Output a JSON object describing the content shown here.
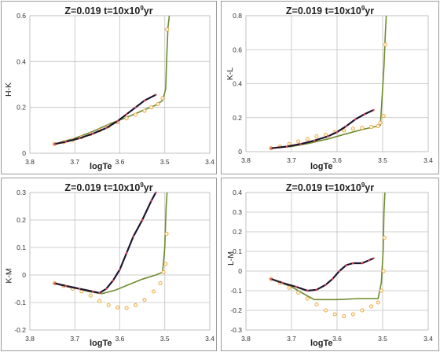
{
  "colors": {
    "frame": "#9a9a9a",
    "grid": "#bfbfbf",
    "isochrone": "#6e8c2d",
    "dark_track": "#1f1530",
    "dark_points": "#d7455a",
    "open_points": "#e8a33a"
  },
  "chart_data": [
    {
      "type": "line",
      "title": {
        "main": "Z=0.019  t=10x10",
        "exp": "9",
        "unit": "yr"
      },
      "xlabel": "logTe",
      "ylabel": "H-K",
      "xlim": [
        3.8,
        3.4
      ],
      "ylim": [
        0,
        0.6
      ],
      "xticks": [
        "3.8",
        "3.7",
        "3.6",
        "3.5",
        "3.4"
      ],
      "yticks": [
        "0",
        "0.2",
        "0.4",
        "0.6"
      ],
      "grid": true,
      "isochrone": [
        [
          3.745,
          0.04
        ],
        [
          3.7,
          0.065
        ],
        [
          3.66,
          0.095
        ],
        [
          3.62,
          0.13
        ],
        [
          3.58,
          0.16
        ],
        [
          3.545,
          0.19
        ],
        [
          3.52,
          0.21
        ],
        [
          3.505,
          0.23
        ],
        [
          3.498,
          0.28
        ],
        [
          3.496,
          0.4
        ],
        [
          3.493,
          0.55
        ],
        [
          3.49,
          0.6
        ]
      ],
      "dark_track": [
        [
          3.745,
          0.04
        ],
        [
          3.72,
          0.05
        ],
        [
          3.69,
          0.065
        ],
        [
          3.66,
          0.085
        ],
        [
          3.63,
          0.11
        ],
        [
          3.605,
          0.14
        ],
        [
          3.585,
          0.17
        ],
        [
          3.565,
          0.2
        ],
        [
          3.545,
          0.23
        ],
        [
          3.52,
          0.255
        ]
      ],
      "open_points": [
        [
          3.745,
          0.04
        ],
        [
          3.725,
          0.048
        ],
        [
          3.705,
          0.058
        ],
        [
          3.685,
          0.07
        ],
        [
          3.665,
          0.084
        ],
        [
          3.645,
          0.1
        ],
        [
          3.625,
          0.118
        ],
        [
          3.605,
          0.135
        ],
        [
          3.585,
          0.152
        ],
        [
          3.565,
          0.168
        ],
        [
          3.545,
          0.185
        ],
        [
          3.53,
          0.2
        ],
        [
          3.515,
          0.215
        ],
        [
          3.505,
          0.24
        ],
        [
          3.495,
          0.54
        ]
      ]
    },
    {
      "type": "line",
      "title": {
        "main": "Z=0.019  t=10x10",
        "exp": "9",
        "unit": "yr"
      },
      "xlabel": "logTe",
      "ylabel": "K-L",
      "xlim": [
        3.8,
        3.4
      ],
      "ylim": [
        0,
        0.8
      ],
      "xticks": [
        "3.8",
        "3.7",
        "3.6",
        "3.5",
        "3.4"
      ],
      "yticks": [
        "0",
        "0.2",
        "0.4",
        "0.6",
        "0.8"
      ],
      "grid": true,
      "isochrone": [
        [
          3.745,
          0.02
        ],
        [
          3.7,
          0.03
        ],
        [
          3.66,
          0.05
        ],
        [
          3.62,
          0.075
        ],
        [
          3.58,
          0.105
        ],
        [
          3.545,
          0.13
        ],
        [
          3.52,
          0.145
        ],
        [
          3.505,
          0.155
        ],
        [
          3.497,
          0.5
        ],
        [
          3.494,
          0.7
        ],
        [
          3.492,
          0.8
        ]
      ],
      "dark_track": [
        [
          3.745,
          0.02
        ],
        [
          3.71,
          0.03
        ],
        [
          3.68,
          0.045
        ],
        [
          3.65,
          0.065
        ],
        [
          3.62,
          0.09
        ],
        [
          3.6,
          0.115
        ],
        [
          3.58,
          0.15
        ],
        [
          3.56,
          0.19
        ],
        [
          3.54,
          0.22
        ],
        [
          3.52,
          0.245
        ]
      ],
      "open_points": [
        [
          3.745,
          0.02
        ],
        [
          3.725,
          0.03
        ],
        [
          3.705,
          0.045
        ],
        [
          3.685,
          0.06
        ],
        [
          3.665,
          0.075
        ],
        [
          3.645,
          0.09
        ],
        [
          3.625,
          0.1
        ],
        [
          3.605,
          0.115
        ],
        [
          3.585,
          0.125
        ],
        [
          3.565,
          0.135
        ],
        [
          3.545,
          0.14
        ],
        [
          3.525,
          0.145
        ],
        [
          3.51,
          0.15
        ],
        [
          3.505,
          0.17
        ],
        [
          3.498,
          0.21
        ],
        [
          3.494,
          0.63
        ]
      ]
    },
    {
      "type": "line",
      "title": {
        "main": "Z=0.019  t=10x10",
        "exp": "9",
        "unit": "yr"
      },
      "xlabel": "logTe",
      "ylabel": "K-M",
      "xlim": [
        3.8,
        3.4
      ],
      "ylim": [
        -0.2,
        0.3
      ],
      "xticks": [
        "3.8",
        "3.7",
        "3.6",
        "3.5",
        "3.4"
      ],
      "yticks": [
        "-0.2",
        "-0.1",
        "0",
        "0.1",
        "0.2",
        "0.3"
      ],
      "grid": true,
      "isochrone": [
        [
          3.745,
          -0.03
        ],
        [
          3.7,
          -0.045
        ],
        [
          3.67,
          -0.06
        ],
        [
          3.64,
          -0.068
        ],
        [
          3.61,
          -0.055
        ],
        [
          3.58,
          -0.035
        ],
        [
          3.55,
          -0.015
        ],
        [
          3.52,
          0.0
        ],
        [
          3.505,
          0.01
        ],
        [
          3.5,
          0.1
        ],
        [
          3.497,
          0.25
        ],
        [
          3.495,
          0.3
        ]
      ],
      "dark_track": [
        [
          3.745,
          -0.03
        ],
        [
          3.72,
          -0.04
        ],
        [
          3.69,
          -0.05
        ],
        [
          3.66,
          -0.06
        ],
        [
          3.645,
          -0.065
        ],
        [
          3.63,
          -0.05
        ],
        [
          3.615,
          -0.02
        ],
        [
          3.6,
          0.02
        ],
        [
          3.585,
          0.08
        ],
        [
          3.57,
          0.14
        ],
        [
          3.55,
          0.2
        ],
        [
          3.53,
          0.27
        ],
        [
          3.52,
          0.3
        ]
      ],
      "open_points": [
        [
          3.745,
          -0.03
        ],
        [
          3.725,
          -0.04
        ],
        [
          3.705,
          -0.05
        ],
        [
          3.685,
          -0.06
        ],
        [
          3.665,
          -0.075
        ],
        [
          3.645,
          -0.095
        ],
        [
          3.625,
          -0.11
        ],
        [
          3.605,
          -0.118
        ],
        [
          3.585,
          -0.12
        ],
        [
          3.565,
          -0.11
        ],
        [
          3.545,
          -0.09
        ],
        [
          3.525,
          -0.06
        ],
        [
          3.51,
          -0.03
        ],
        [
          3.503,
          0.01
        ],
        [
          3.498,
          0.04
        ],
        [
          3.496,
          0.15
        ]
      ]
    },
    {
      "type": "line",
      "title": {
        "main": "Z=0.019  t=10x10",
        "exp": "9",
        "unit": "yr"
      },
      "xlabel": "logTe",
      "ylabel": "L-M",
      "xlim": [
        3.8,
        3.4
      ],
      "ylim": [
        -0.3,
        0.4
      ],
      "xticks": [
        "3.8",
        "3.7",
        "3.6",
        "3.5",
        "3.4"
      ],
      "yticks": [
        "-0.3",
        "-0.2",
        "-0.1",
        "0",
        "0.1",
        "0.2",
        "0.3",
        "0.4"
      ],
      "grid": true,
      "isochrone": [
        [
          3.745,
          -0.04
        ],
        [
          3.7,
          -0.08
        ],
        [
          3.67,
          -0.12
        ],
        [
          3.65,
          -0.145
        ],
        [
          3.6,
          -0.145
        ],
        [
          3.55,
          -0.14
        ],
        [
          3.51,
          -0.14
        ],
        [
          3.503,
          -0.06
        ],
        [
          3.499,
          0.1
        ],
        [
          3.497,
          0.3
        ],
        [
          3.495,
          0.4
        ]
      ],
      "dark_track": [
        [
          3.745,
          -0.04
        ],
        [
          3.72,
          -0.06
        ],
        [
          3.69,
          -0.08
        ],
        [
          3.665,
          -0.1
        ],
        [
          3.645,
          -0.095
        ],
        [
          3.625,
          -0.07
        ],
        [
          3.61,
          -0.04
        ],
        [
          3.595,
          0.0
        ],
        [
          3.58,
          0.03
        ],
        [
          3.565,
          0.04
        ],
        [
          3.545,
          0.04
        ],
        [
          3.53,
          0.055
        ],
        [
          3.52,
          0.065
        ]
      ],
      "open_points": [
        [
          3.745,
          -0.04
        ],
        [
          3.725,
          -0.06
        ],
        [
          3.705,
          -0.085
        ],
        [
          3.685,
          -0.11
        ],
        [
          3.665,
          -0.14
        ],
        [
          3.645,
          -0.17
        ],
        [
          3.625,
          -0.2
        ],
        [
          3.605,
          -0.22
        ],
        [
          3.585,
          -0.23
        ],
        [
          3.565,
          -0.22
        ],
        [
          3.545,
          -0.2
        ],
        [
          3.525,
          -0.18
        ],
        [
          3.51,
          -0.16
        ],
        [
          3.503,
          -0.1
        ],
        [
          3.498,
          0.0
        ],
        [
          3.496,
          0.17
        ]
      ]
    }
  ]
}
